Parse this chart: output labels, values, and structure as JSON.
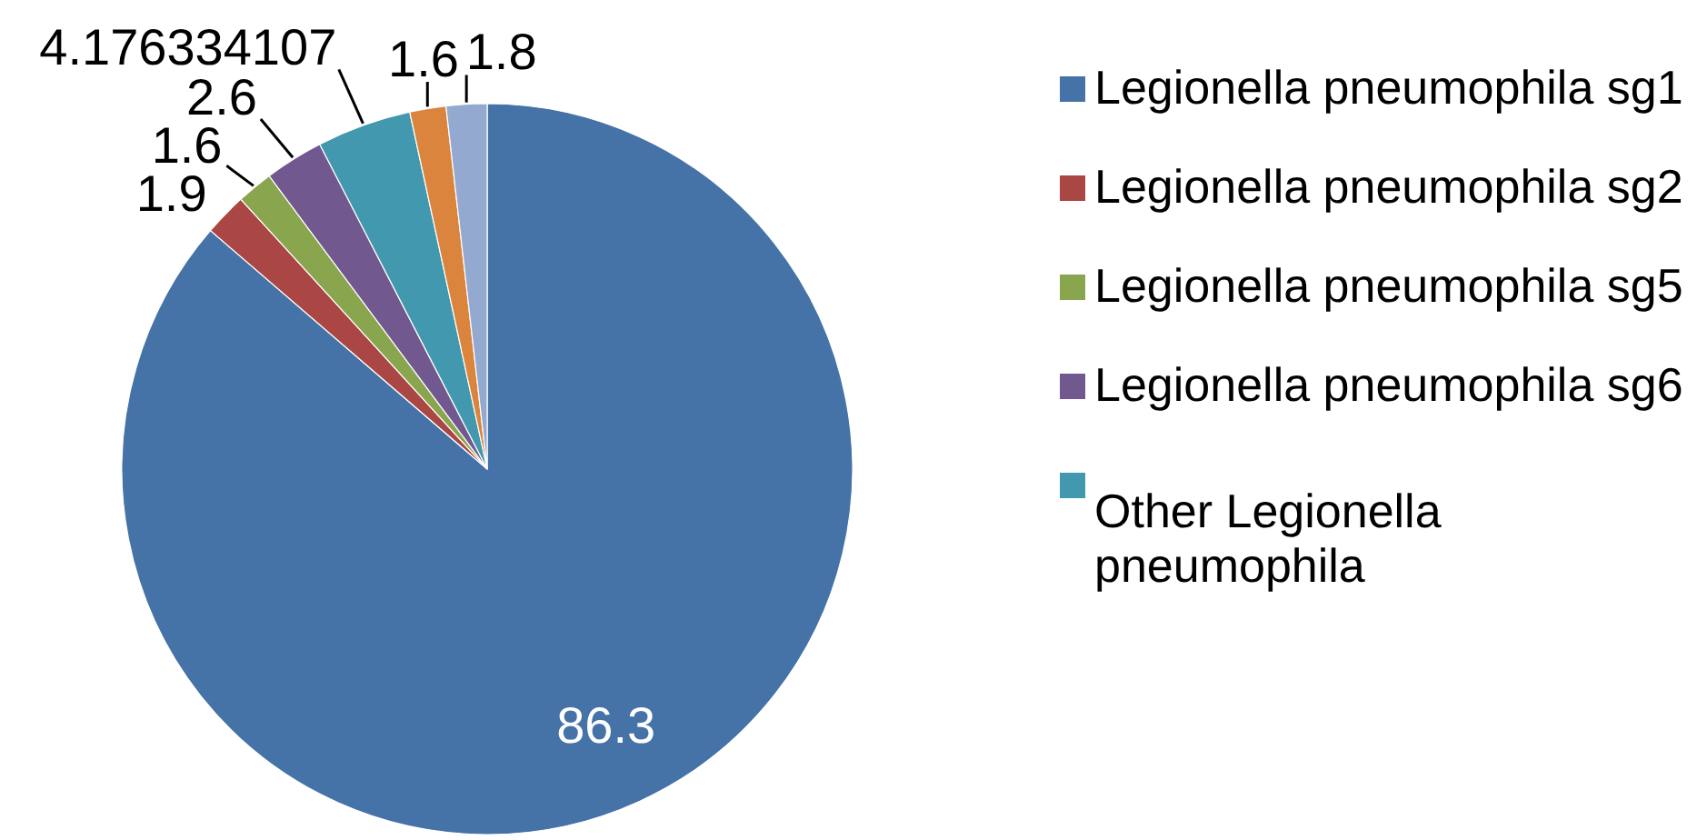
{
  "chart_data": {
    "type": "pie",
    "categories": [
      "Legionella pneumophila sg1",
      "Legionella pneumophila sg2",
      "Legionella pneumophila sg5",
      "Legionella pneumophila sg6",
      "Other Legionella pneumophila",
      null,
      null
    ],
    "values": [
      86.3,
      1.9,
      1.6,
      2.6,
      4.176334107,
      1.6,
      1.8
    ],
    "colors": [
      "#4572a7",
      "#aa4643",
      "#89a54e",
      "#71588f",
      "#4198af",
      "#db843d",
      "#93a9cf"
    ],
    "data_labels": true,
    "legend": "right"
  }
}
